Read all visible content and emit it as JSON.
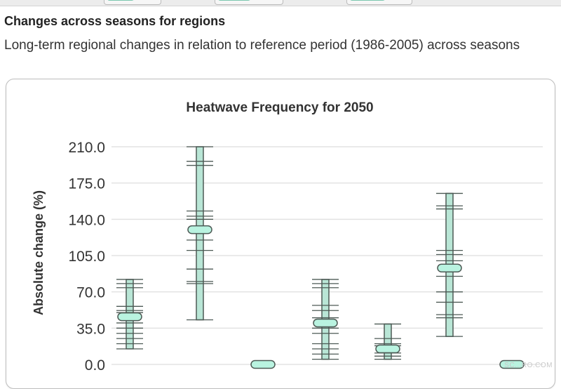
{
  "page": {
    "section_title": "Changes across seasons for regions",
    "section_description": "Long-term regional changes in relation to reference period (1986-2005) across seasons"
  },
  "watermark": "SC...RO.COM",
  "colors": {
    "box_fill": "#b9e6d6",
    "box_stroke": "#4d5a55",
    "median_fill": "#b9f3e0",
    "grid": "#e3e3e3",
    "whisker": "#4d5a55"
  },
  "chart_data": {
    "type": "boxplot",
    "title": "Heatwave Frequency for 2050",
    "ylabel": "Absolute change (%)",
    "ylim": [
      0,
      210
    ],
    "yticks": [
      "0.0",
      "35.0",
      "70.0",
      "105.0",
      "140.0",
      "175.0",
      "210.0"
    ],
    "ytick_values": [
      0,
      35,
      70,
      105,
      140,
      175,
      210
    ],
    "grid": true,
    "series": [
      {
        "min": 15,
        "max": 82,
        "median": 46,
        "marks": [
          15,
          20,
          25,
          30,
          35,
          40,
          50,
          52,
          56,
          74,
          78,
          82
        ]
      },
      {
        "min": 43,
        "max": 210,
        "median": 130,
        "marks": [
          43,
          78,
          80,
          92,
          110,
          120,
          140,
          143,
          148,
          192,
          196,
          210
        ]
      },
      {
        "min": 0,
        "max": 0,
        "median": 0,
        "marks": []
      },
      {
        "min": 5,
        "max": 82,
        "median": 40,
        "marks": [
          5,
          10,
          15,
          20,
          30,
          35,
          45,
          52,
          57,
          74,
          78,
          82
        ]
      },
      {
        "min": 5,
        "max": 39,
        "median": 15,
        "marks": [
          5,
          8,
          11,
          18,
          20,
          25,
          39
        ]
      },
      {
        "min": 27,
        "max": 165,
        "median": 93,
        "marks": [
          27,
          45,
          48,
          60,
          70,
          85,
          100,
          106,
          110,
          150,
          153,
          165
        ]
      },
      {
        "min": 0,
        "max": 0,
        "median": 0,
        "marks": []
      }
    ]
  }
}
